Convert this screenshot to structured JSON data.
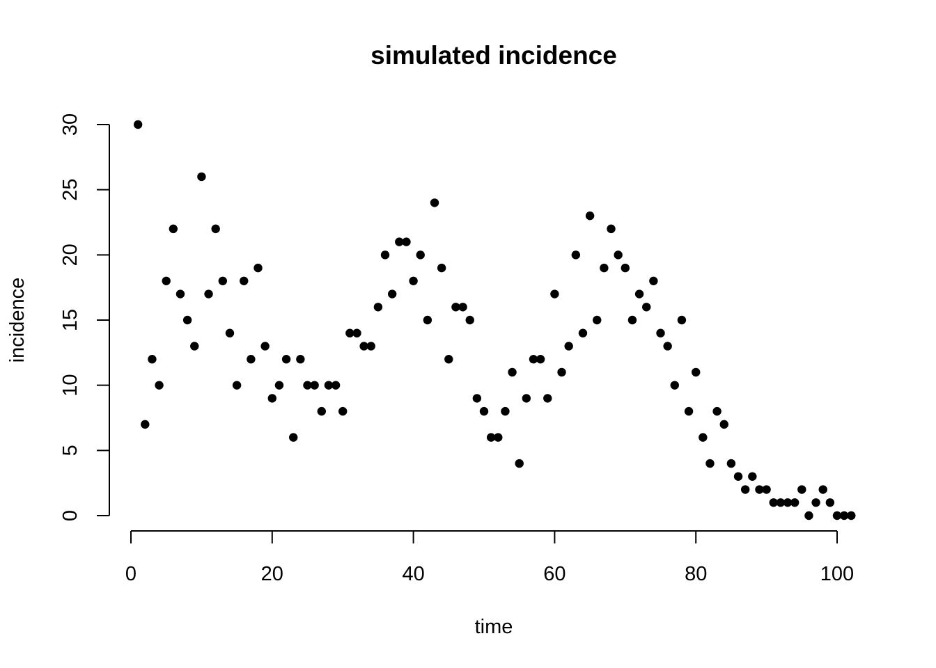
{
  "chart_data": {
    "type": "scatter",
    "title": "simulated incidence",
    "xlabel": "time",
    "ylabel": "incidence",
    "xlim": [
      0,
      102
    ],
    "ylim": [
      0,
      30
    ],
    "xticks": [
      0,
      20,
      40,
      60,
      80,
      100
    ],
    "yticks": [
      0,
      5,
      10,
      15,
      20,
      25,
      30
    ],
    "grid": false,
    "legend": "none",
    "point_color": "#000000",
    "x": [
      1,
      2,
      3,
      4,
      5,
      6,
      7,
      8,
      9,
      10,
      11,
      12,
      13,
      14,
      15,
      16,
      17,
      18,
      19,
      20,
      21,
      22,
      23,
      24,
      25,
      26,
      27,
      28,
      29,
      30,
      31,
      32,
      33,
      34,
      35,
      36,
      37,
      38,
      39,
      40,
      41,
      42,
      43,
      44,
      45,
      46,
      47,
      48,
      49,
      50,
      51,
      52,
      53,
      54,
      55,
      56,
      57,
      58,
      59,
      60,
      61,
      62,
      63,
      64,
      65,
      66,
      67,
      68,
      69,
      70,
      71,
      72,
      73,
      74,
      75,
      76,
      77,
      78,
      79,
      80,
      81,
      82,
      83,
      84,
      85,
      86,
      87,
      88,
      89,
      90,
      91,
      92,
      93,
      94,
      95,
      96,
      97,
      98,
      99,
      100,
      101,
      102
    ],
    "y": [
      30,
      7,
      12,
      10,
      18,
      22,
      17,
      15,
      13,
      26,
      17,
      22,
      18,
      14,
      10,
      18,
      12,
      19,
      13,
      9,
      10,
      12,
      6,
      12,
      10,
      10,
      8,
      10,
      10,
      8,
      14,
      14,
      13,
      13,
      16,
      20,
      17,
      21,
      21,
      18,
      20,
      15,
      24,
      19,
      12,
      16,
      16,
      15,
      9,
      8,
      6,
      6,
      8,
      11,
      4,
      9,
      12,
      12,
      9,
      17,
      11,
      13,
      20,
      14,
      23,
      15,
      19,
      22,
      20,
      19,
      15,
      17,
      16,
      18,
      14,
      13,
      10,
      15,
      8,
      11,
      6,
      4,
      8,
      7,
      4,
      3,
      2,
      3,
      2,
      2,
      1,
      1,
      1,
      1,
      2,
      0,
      1,
      2,
      1,
      0,
      0,
      0
    ]
  }
}
